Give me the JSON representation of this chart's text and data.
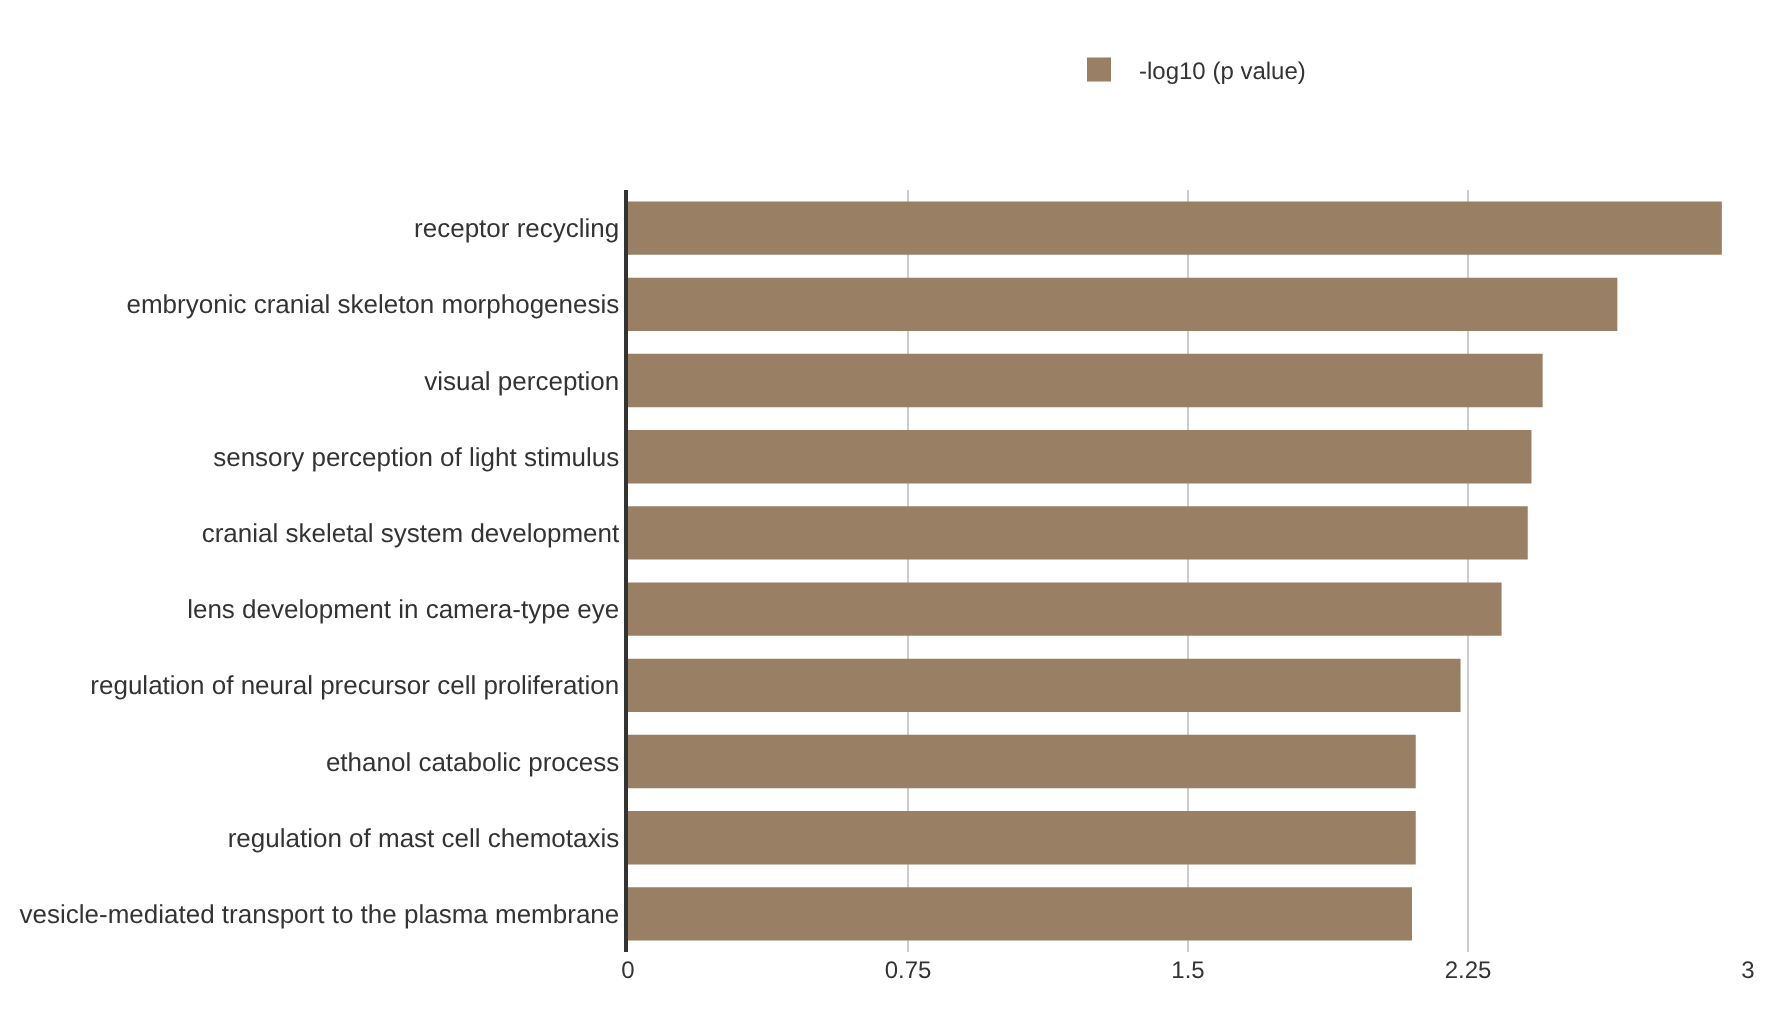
{
  "chart_data": {
    "type": "bar",
    "orientation": "horizontal",
    "categories": [
      "receptor recycling",
      "embryonic cranial skeleton morphogenesis",
      "visual perception",
      "sensory perception of light stimulus",
      "cranial skeletal system development",
      "lens development in camera-type eye",
      "regulation of neural precursor cell proliferation",
      "ethanol catabolic process",
      "regulation of mast cell chemotaxis",
      "vesicle-mediated transport to the plasma membrane"
    ],
    "series": [
      {
        "name": "-log10 (p value)",
        "color": "#998065",
        "values": [
          2.93,
          2.65,
          2.45,
          2.42,
          2.41,
          2.34,
          2.23,
          2.11,
          2.11,
          2.1
        ]
      }
    ],
    "xlim": [
      0,
      3
    ],
    "xticks": [
      0,
      0.75,
      1.5,
      2.25,
      3
    ],
    "grid": "x",
    "legend": "top"
  }
}
